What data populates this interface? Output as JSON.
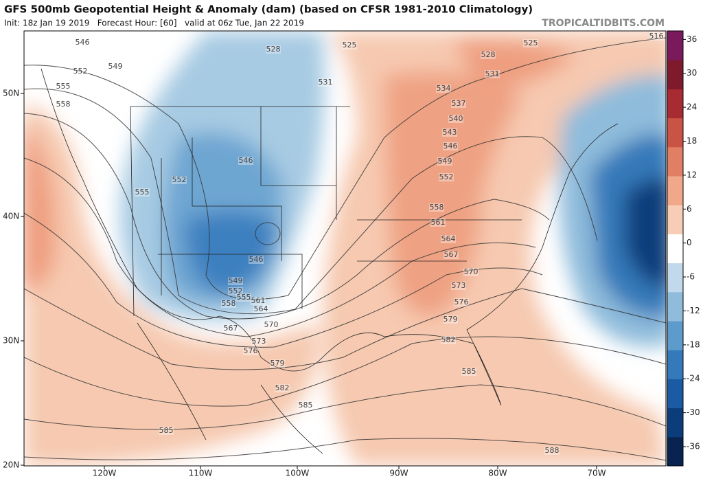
{
  "header": {
    "title": "GFS 500mb Geopotential Height & Anomaly (dam) (based on CFSR 1981-2010 Climatology)",
    "subtitle": "Init: 18z Jan 19 2019   Forecast Hour: [60]   valid at 06z Tue, Jan 22 2019",
    "source": "TROPICALTIDBITS.COM"
  },
  "map": {
    "lat_labels": [
      "50N",
      "40N",
      "30N",
      "20N"
    ],
    "lon_labels": [
      "120W",
      "110W",
      "100W",
      "90W",
      "80W",
      "70W"
    ],
    "contour_labels": [
      546,
      549,
      552,
      555,
      558,
      528,
      525,
      531,
      528,
      525,
      516,
      531,
      534,
      537,
      540,
      543,
      546,
      549,
      552,
      558,
      561,
      564,
      567,
      570,
      573,
      576,
      579,
      582,
      585,
      588,
      546,
      552,
      555,
      546,
      549,
      552,
      555,
      558,
      561,
      564,
      567,
      570,
      573,
      576,
      579,
      582,
      585,
      585
    ]
  },
  "colorbar": {
    "lim": [
      -39.4,
      37.5
    ],
    "ticks": [
      36,
      30,
      24,
      18,
      12,
      6,
      0,
      -6,
      -12,
      -18,
      -24,
      -30,
      -36
    ],
    "colors": [
      "#08234f",
      "#0b3d7a",
      "#1a5ba3",
      "#3479b9",
      "#5c9bcb",
      "#8fbcdb",
      "#c1d9ea",
      "#ffffff",
      "#f7cdb5",
      "#f0a889",
      "#e07f63",
      "#c95345",
      "#a82a33",
      "#7e1a2c",
      "#7a1a5c"
    ]
  }
}
